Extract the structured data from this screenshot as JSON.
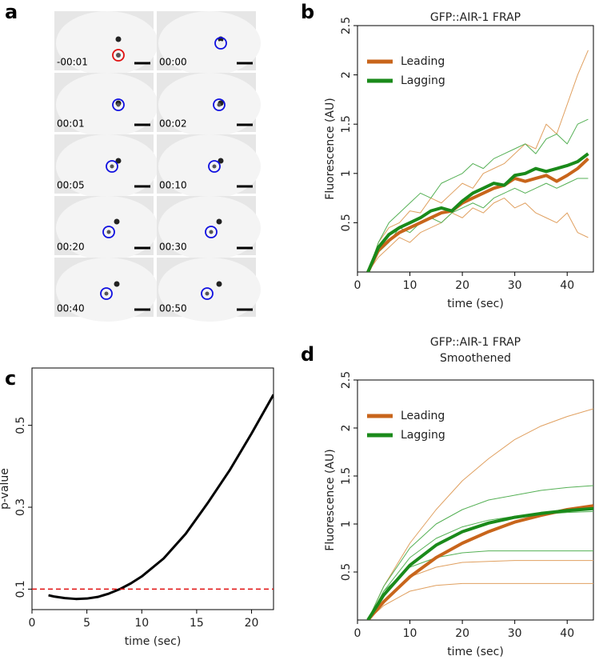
{
  "panel_labels": [
    "a",
    "b",
    "c",
    "d"
  ],
  "images": [
    {
      "time": "-00:01",
      "circle_color": "#e01010"
    },
    {
      "time": "00:00",
      "circle_color": "#1010e0"
    },
    {
      "time": "00:01",
      "circle_color": "#1010e0"
    },
    {
      "time": "00:02",
      "circle_color": "#1010e0"
    },
    {
      "time": "00:05",
      "circle_color": "#1010e0"
    },
    {
      "time": "00:10",
      "circle_color": "#1010e0"
    },
    {
      "time": "00:20",
      "circle_color": "#1010e0"
    },
    {
      "time": "00:30",
      "circle_color": "#1010e0"
    },
    {
      "time": "00:40",
      "circle_color": "#1010e0"
    },
    {
      "time": "00:50",
      "circle_color": "#1010e0"
    }
  ],
  "chart_data": [
    {
      "type": "line",
      "title": "GFP::AIR-1 FRAP",
      "x_label": "time (sec)",
      "y_label": "Fluorescence (AU)",
      "xlim": [
        0,
        45
      ],
      "xticks": [
        0,
        10,
        20,
        30,
        40
      ],
      "ylim": [
        0,
        2.5
      ],
      "yticks": [
        0.5,
        1.0,
        1.5,
        2.0,
        2.5
      ],
      "legend": "top-left",
      "x": [
        2,
        4,
        6,
        8,
        10,
        12,
        14,
        16,
        18,
        20,
        22,
        24,
        26,
        28,
        30,
        32,
        34,
        36,
        38,
        40,
        42,
        44
      ],
      "traces": [
        {
          "color": "#e0a060",
          "values": [
            0,
            0.3,
            0.45,
            0.5,
            0.62,
            0.6,
            0.75,
            0.7,
            0.8,
            0.9,
            0.85,
            1.0,
            1.05,
            1.1,
            1.2,
            1.3,
            1.25,
            1.5,
            1.4,
            1.7,
            2.0,
            2.25
          ]
        },
        {
          "color": "#e0a060",
          "values": [
            0,
            0.15,
            0.25,
            0.35,
            0.3,
            0.4,
            0.45,
            0.5,
            0.6,
            0.55,
            0.65,
            0.6,
            0.7,
            0.75,
            0.65,
            0.7,
            0.6,
            0.55,
            0.5,
            0.6,
            0.4,
            0.35
          ]
        },
        {
          "color": "#55b055",
          "values": [
            0,
            0.3,
            0.5,
            0.6,
            0.7,
            0.8,
            0.75,
            0.9,
            0.95,
            1.0,
            1.1,
            1.05,
            1.15,
            1.2,
            1.25,
            1.3,
            1.2,
            1.35,
            1.4,
            1.3,
            1.5,
            1.55
          ]
        },
        {
          "color": "#55b055",
          "values": [
            0,
            0.2,
            0.3,
            0.45,
            0.4,
            0.5,
            0.55,
            0.5,
            0.6,
            0.65,
            0.7,
            0.65,
            0.75,
            0.8,
            0.85,
            0.8,
            0.85,
            0.9,
            0.85,
            0.9,
            0.95,
            0.95
          ]
        }
      ],
      "series": [
        {
          "name": "Leading",
          "color": "#c8651b",
          "values": [
            0,
            0.22,
            0.32,
            0.4,
            0.45,
            0.5,
            0.55,
            0.6,
            0.62,
            0.7,
            0.75,
            0.8,
            0.85,
            0.88,
            0.95,
            0.92,
            0.95,
            0.98,
            0.92,
            0.98,
            1.05,
            1.15
          ]
        },
        {
          "name": "Lagging",
          "color": "#1a8a1a",
          "values": [
            0,
            0.25,
            0.38,
            0.45,
            0.5,
            0.55,
            0.62,
            0.65,
            0.62,
            0.72,
            0.8,
            0.85,
            0.9,
            0.88,
            0.98,
            1.0,
            1.05,
            1.02,
            1.05,
            1.08,
            1.12,
            1.2
          ]
        }
      ]
    },
    {
      "type": "line",
      "x_label": "time (sec)",
      "y_label": "p-value",
      "xlim": [
        0,
        22
      ],
      "xticks": [
        0,
        5,
        10,
        15,
        20
      ],
      "ylim": [
        0.05,
        0.64
      ],
      "yticks": [
        0.1,
        0.3,
        0.5
      ],
      "hline": {
        "value": 0.1,
        "color": "#e01010"
      },
      "x": [
        1.5,
        2,
        3,
        4,
        5,
        6,
        7,
        8,
        9,
        10,
        12,
        14,
        16,
        18,
        20,
        22
      ],
      "series": [
        {
          "color": "#000000",
          "values": [
            0.085,
            0.082,
            0.078,
            0.076,
            0.077,
            0.081,
            0.089,
            0.1,
            0.114,
            0.131,
            0.175,
            0.235,
            0.31,
            0.39,
            0.48,
            0.575
          ]
        }
      ]
    },
    {
      "type": "line",
      "title": "GFP::AIR-1 FRAP",
      "subtitle": "Smoothened",
      "x_label": "time (sec)",
      "y_label": "Fluorescence (AU)",
      "xlim": [
        0,
        45
      ],
      "xticks": [
        0,
        10,
        20,
        30,
        40
      ],
      "ylim": [
        0,
        2.5
      ],
      "yticks": [
        0.5,
        1.0,
        1.5,
        2.0,
        2.5
      ],
      "legend": "top-left",
      "x": [
        2,
        5,
        10,
        15,
        20,
        25,
        30,
        35,
        40,
        45
      ],
      "traces": [
        {
          "color": "#e0a060",
          "values": [
            0,
            0.35,
            0.8,
            1.15,
            1.45,
            1.68,
            1.88,
            2.02,
            2.12,
            2.2
          ]
        },
        {
          "color": "#e0a060",
          "values": [
            0,
            0.15,
            0.3,
            0.36,
            0.38,
            0.38,
            0.38,
            0.38,
            0.38,
            0.38
          ]
        },
        {
          "color": "#e0a060",
          "values": [
            0,
            0.2,
            0.45,
            0.55,
            0.6,
            0.61,
            0.62,
            0.62,
            0.62,
            0.62
          ]
        },
        {
          "color": "#55b055",
          "values": [
            0,
            0.3,
            0.65,
            0.85,
            0.97,
            1.04,
            1.08,
            1.1,
            1.12,
            1.13
          ]
        },
        {
          "color": "#55b055",
          "values": [
            0,
            0.35,
            0.75,
            1.0,
            1.15,
            1.25,
            1.3,
            1.35,
            1.38,
            1.4
          ]
        },
        {
          "color": "#55b055",
          "values": [
            0,
            0.3,
            0.55,
            0.65,
            0.7,
            0.72,
            0.72,
            0.72,
            0.72,
            0.72
          ]
        }
      ],
      "series": [
        {
          "name": "Leading",
          "color": "#c8651b",
          "values": [
            0,
            0.19,
            0.45,
            0.65,
            0.8,
            0.92,
            1.02,
            1.09,
            1.15,
            1.19
          ]
        },
        {
          "name": "Lagging",
          "color": "#1a8a1a",
          "values": [
            0,
            0.26,
            0.57,
            0.78,
            0.92,
            1.01,
            1.07,
            1.11,
            1.14,
            1.16
          ]
        }
      ]
    }
  ]
}
